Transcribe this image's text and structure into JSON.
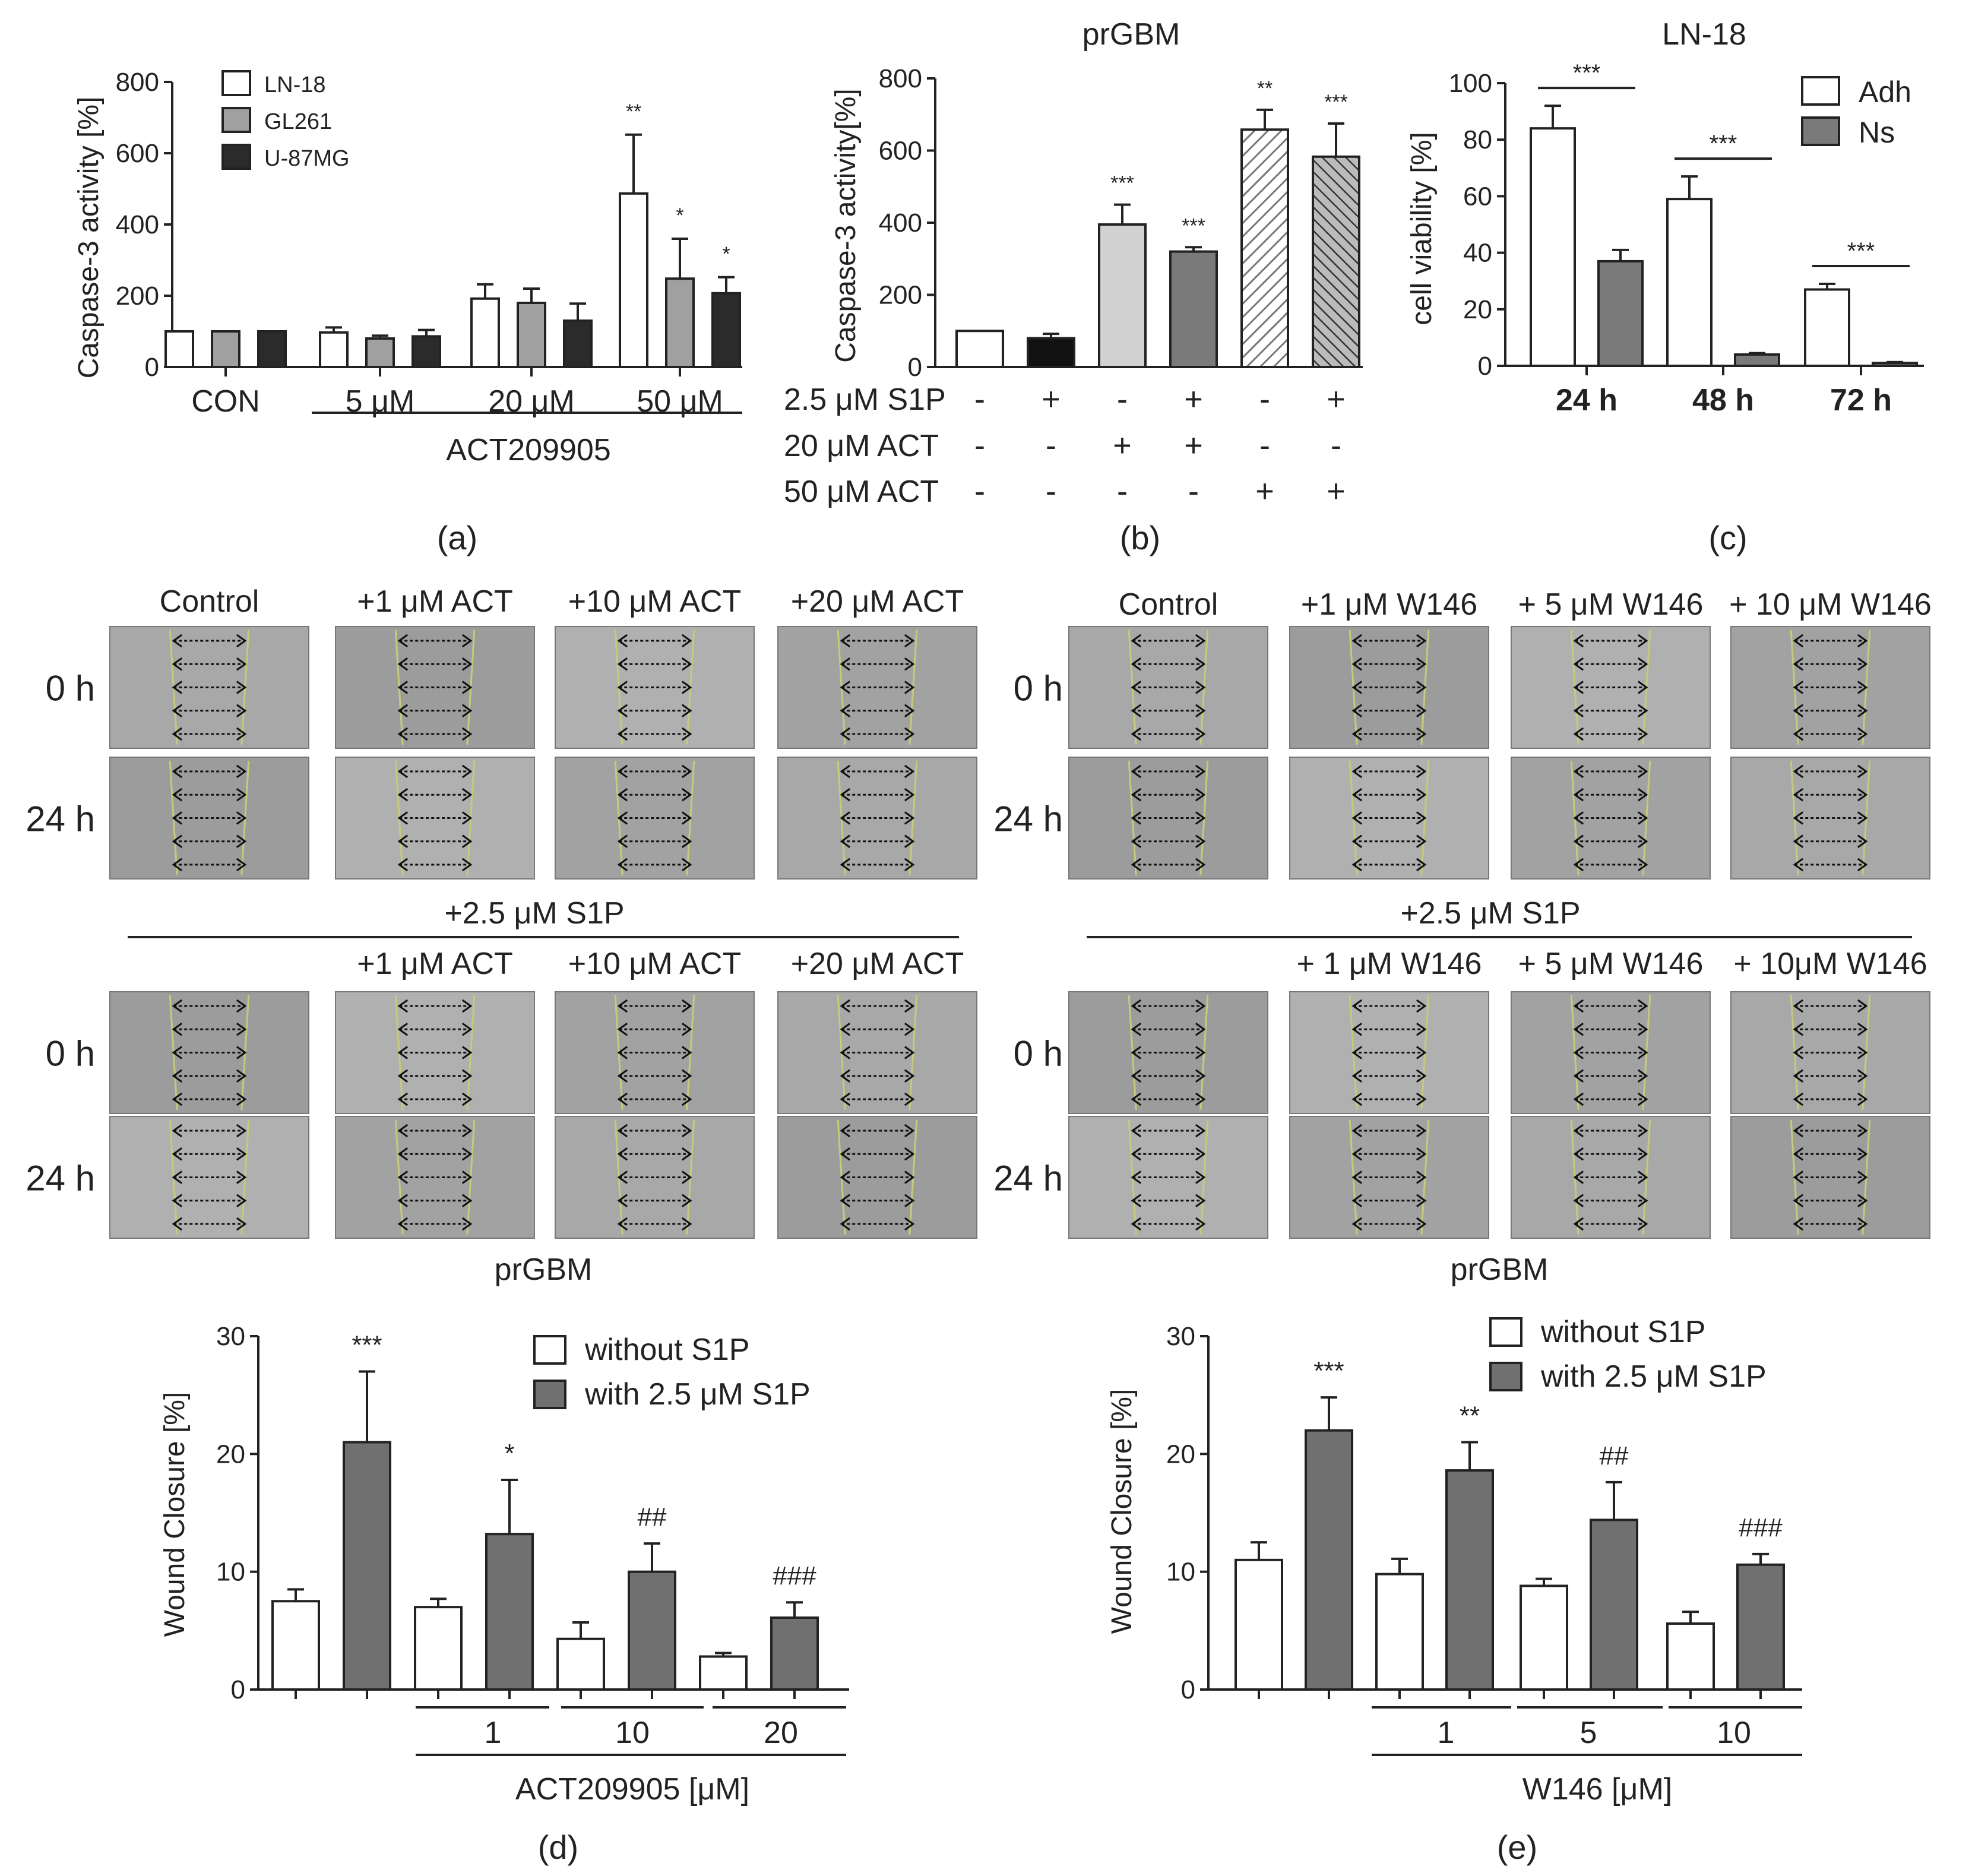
{
  "panels": {
    "a": {
      "caption": "(a)"
    },
    "b": {
      "caption": "(b)",
      "title": "prGBM"
    },
    "c": {
      "caption": "(c)",
      "title": "LN-18"
    },
    "d": {
      "caption": "(d)"
    },
    "e": {
      "caption": "(e)"
    }
  },
  "chart_data": [
    {
      "id": "a",
      "type": "bar",
      "ylabel": "Caspase-3 activity [%]",
      "ylim": [
        0,
        800
      ],
      "yticks": [
        0,
        200,
        400,
        600,
        800
      ],
      "categories": [
        "CON",
        "5 μM",
        "20 μM",
        "50 μM"
      ],
      "group_label": "ACT209905",
      "legend_position": "top-left",
      "series": [
        {
          "name": "LN-18",
          "color": "#ffffff",
          "values": [
            100,
            97,
            192,
            487
          ],
          "errors": [
            0,
            14,
            40,
            165
          ],
          "sig": [
            "",
            "",
            "",
            "**"
          ]
        },
        {
          "name": "GL261",
          "color": "#a0a0a0",
          "values": [
            100,
            80,
            180,
            248
          ],
          "errors": [
            0,
            8,
            40,
            112
          ],
          "sig": [
            "",
            "",
            "",
            "*"
          ]
        },
        {
          "name": "U-87MG",
          "color": "#2b2b2b",
          "values": [
            100,
            86,
            130,
            207
          ],
          "errors": [
            0,
            18,
            48,
            45
          ],
          "sig": [
            "",
            "",
            "",
            "*"
          ]
        }
      ]
    },
    {
      "id": "b",
      "type": "bar",
      "title": "prGBM",
      "ylabel": "Caspase-3 activity[%]",
      "ylim": [
        0,
        800
      ],
      "yticks": [
        0,
        200,
        400,
        600,
        800
      ],
      "values": [
        100,
        80,
        395,
        320,
        658,
        583
      ],
      "errors": [
        0,
        12,
        55,
        12,
        55,
        92
      ],
      "sig": [
        "",
        "",
        "***",
        "***",
        "**",
        "***"
      ],
      "colors": [
        "#ffffff",
        "#111111",
        "#d2d2d2",
        "#7a7a7a",
        "hatch-light",
        "hatch-dark"
      ],
      "condition_rows": [
        {
          "label": "2.5 μM S1P",
          "marks": [
            "-",
            "+",
            "-",
            "+",
            "-",
            "+"
          ]
        },
        {
          "label": "20 μM ACT",
          "marks": [
            "-",
            "-",
            "+",
            "+",
            "-",
            "-"
          ]
        },
        {
          "label": "50 μM ACT",
          "marks": [
            "-",
            "-",
            "-",
            "-",
            "+",
            "+"
          ]
        }
      ]
    },
    {
      "id": "c",
      "type": "bar",
      "title": "LN-18",
      "ylabel": "cell viability [%]",
      "ylim": [
        0,
        100
      ],
      "yticks": [
        0,
        20,
        40,
        60,
        80,
        100
      ],
      "categories": [
        "24 h",
        "48 h",
        "72 h"
      ],
      "legend_position": "top-right",
      "series": [
        {
          "name": "Adh",
          "color": "#ffffff",
          "values": [
            84,
            59,
            27
          ],
          "errors": [
            8,
            8,
            2
          ]
        },
        {
          "name": "Ns",
          "color": "#7a7a7a",
          "values": [
            37,
            4,
            1
          ],
          "errors": [
            4,
            0.5,
            0.3
          ]
        }
      ],
      "sig": [
        "***",
        "***",
        "***"
      ]
    },
    {
      "id": "d",
      "type": "bar",
      "ylabel": "Wound Closure [%]",
      "ylim": [
        0,
        30
      ],
      "yticks": [
        0,
        10,
        20,
        30
      ],
      "group_title": "prGBM",
      "dose_labels": [
        "1",
        "10",
        "20"
      ],
      "xlabel": "ACT209905 [μM]",
      "legend": [
        "without S1P",
        "with 2.5 μM S1P"
      ],
      "pairs": [
        {
          "without": 7.5,
          "without_err": 1.0,
          "with": 21.0,
          "with_err": 6.0,
          "sig": "***"
        },
        {
          "without": 7.0,
          "without_err": 0.7,
          "with": 13.2,
          "with_err": 4.6,
          "sig": "*"
        },
        {
          "without": 4.3,
          "without_err": 1.4,
          "with": 10.0,
          "with_err": 2.4,
          "sig": "##"
        },
        {
          "without": 2.8,
          "without_err": 0.3,
          "with": 6.1,
          "with_err": 1.3,
          "sig": "###"
        }
      ]
    },
    {
      "id": "e",
      "type": "bar",
      "ylabel": "Wound Closure [%]",
      "ylim": [
        0,
        30
      ],
      "yticks": [
        0,
        10,
        20,
        30
      ],
      "group_title": "prGBM",
      "dose_labels": [
        "1",
        "5",
        "10"
      ],
      "xlabel": "W146 [μM]",
      "legend": [
        "without S1P",
        "with 2.5 μM S1P"
      ],
      "pairs": [
        {
          "without": 11.0,
          "without_err": 1.5,
          "with": 22.0,
          "with_err": 2.8,
          "sig": "***"
        },
        {
          "without": 9.8,
          "without_err": 1.3,
          "with": 18.6,
          "with_err": 2.4,
          "sig": "**"
        },
        {
          "without": 8.8,
          "without_err": 0.6,
          "with": 14.4,
          "with_err": 3.2,
          "sig": "##"
        },
        {
          "without": 5.6,
          "without_err": 1.0,
          "with": 10.6,
          "with_err": 0.9,
          "sig": "###"
        }
      ]
    }
  ],
  "micrographs": {
    "left": {
      "top_cols": [
        "Control",
        "+1 μM ACT",
        "+10 μM ACT",
        "+20 μM ACT"
      ],
      "s1p_label": "+2.5 μM S1P",
      "bottom_cols": [
        "+1 μM ACT",
        "+10 μM ACT",
        "+20 μM ACT"
      ],
      "rows": [
        "0 h",
        "24 h"
      ],
      "caption": "prGBM"
    },
    "right": {
      "top_cols": [
        "Control",
        "+1 μM W146",
        "+ 5 μM W146",
        "+ 10 μM W146"
      ],
      "s1p_label": "+2.5 μM S1P",
      "bottom_cols": [
        "+ 1 μM W146",
        "+ 5 μM W146",
        "+ 10μM W146"
      ],
      "rows": [
        "0 h",
        "24 h"
      ],
      "caption": "prGBM"
    }
  }
}
